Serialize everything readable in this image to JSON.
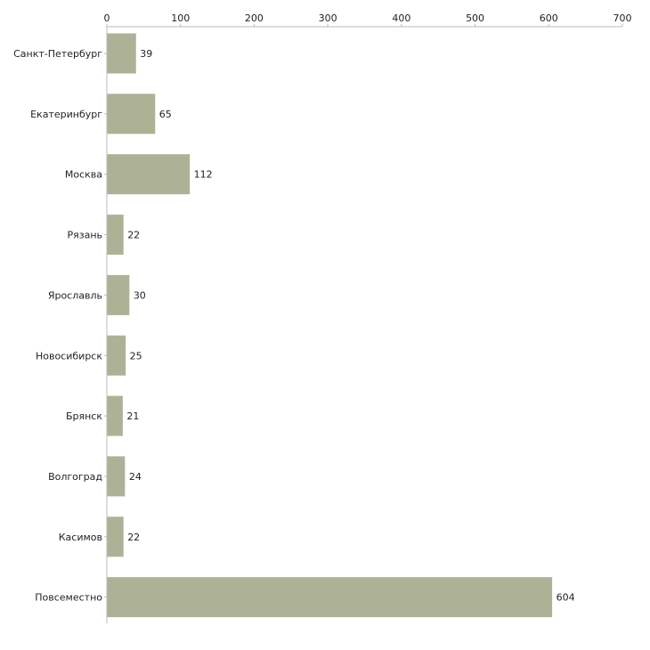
{
  "chart_data": {
    "type": "bar",
    "orientation": "horizontal",
    "title": "",
    "xlabel": "",
    "ylabel": "",
    "xlim": [
      0,
      700
    ],
    "x_ticks": [
      0,
      100,
      200,
      300,
      400,
      500,
      600,
      700
    ],
    "x_axis_position": "top",
    "grid": false,
    "categories": [
      "Санкт-Петербург",
      "Екатеринбург",
      "Москва",
      "Рязань",
      "Ярославль",
      "Новосибирск",
      "Брянск",
      "Волгоград",
      "Касимов",
      "Повсеместно"
    ],
    "values": [
      39,
      65,
      112,
      22,
      30,
      25,
      21,
      24,
      22,
      604
    ],
    "bar_color": "#adb296",
    "axis_color": "#bbbbbb"
  }
}
